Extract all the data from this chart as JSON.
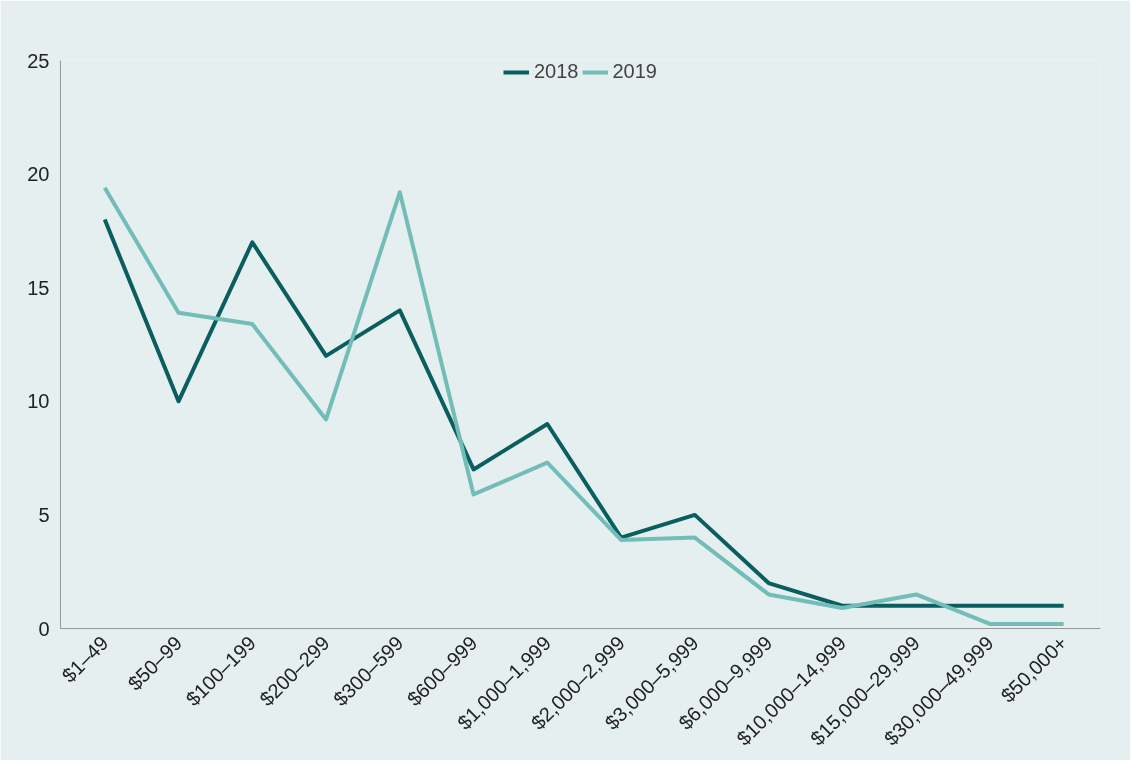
{
  "chart_data": {
    "type": "line",
    "categories": [
      "$1–49",
      "$50–99",
      "$100–199",
      "$200–299",
      "$300–599",
      "$600–999",
      "$1,000–1,999",
      "$2,000–2,999",
      "$3,000–5,999",
      "$6,000–9,999",
      "$10,000–14,999",
      "$15,000–29,999",
      "$30,000–49,999",
      "$50,000+"
    ],
    "series": [
      {
        "name": "2018",
        "color": "#0b5e5f",
        "values": [
          18,
          10,
          17,
          12,
          14,
          7,
          9,
          4,
          5,
          2,
          1,
          1,
          1,
          1
        ]
      },
      {
        "name": "2019",
        "color": "#72bdb8",
        "values": [
          19.4,
          13.9,
          13.4,
          9.2,
          19.2,
          5.9,
          7.3,
          3.9,
          4.0,
          1.5,
          0.9,
          1.5,
          0.2,
          0.2
        ]
      }
    ],
    "ylim": [
      0,
      25
    ],
    "yticks": [
      0,
      5,
      10,
      15,
      20,
      25
    ],
    "grid": false,
    "legend": "top",
    "marker": "none",
    "line_style": "solid"
  }
}
